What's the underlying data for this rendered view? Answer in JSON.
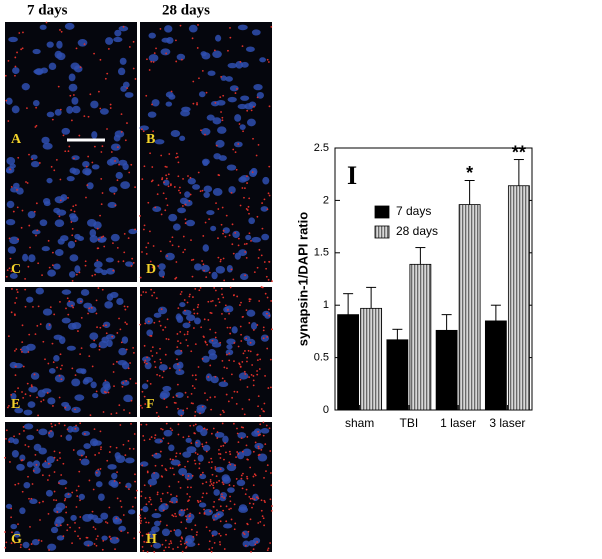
{
  "panels": {
    "column_titles": [
      "7 days",
      "28 days"
    ],
    "labels": [
      "A",
      "B",
      "C",
      "D",
      "E",
      "F",
      "G",
      "H"
    ]
  },
  "chart_data": {
    "type": "bar",
    "panel_label": "I",
    "ylabel": "synapsin-1/DAPI ratio",
    "categories": [
      "sham",
      "TBI",
      "1 laser",
      "3 laser"
    ],
    "series": [
      {
        "name": "7 days",
        "color": "#000000",
        "values": [
          0.91,
          0.67,
          0.76,
          0.85
        ],
        "errors": [
          0.2,
          0.1,
          0.15,
          0.15
        ]
      },
      {
        "name": "28 days",
        "color": "#9a9a9a",
        "values": [
          0.97,
          1.39,
          1.96,
          2.14
        ],
        "errors": [
          0.2,
          0.16,
          0.23,
          0.25
        ]
      }
    ],
    "annotations": [
      null,
      null,
      "*",
      "**"
    ],
    "ylim": [
      0,
      2.5
    ],
    "yticks": [
      0,
      0.5,
      1,
      1.5,
      2,
      2.5
    ],
    "grid": false
  }
}
